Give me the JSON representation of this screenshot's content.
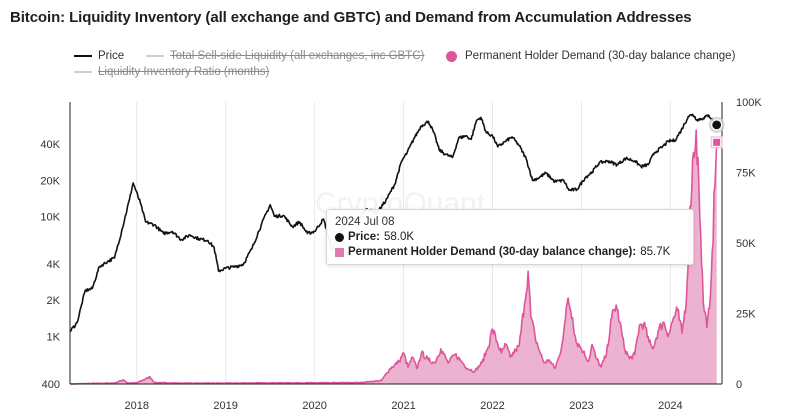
{
  "title": "Bitcoin: Liquidity Inventory (all exchange and GBTC) and Demand from Accumulation Addresses",
  "legend": {
    "price": "Price",
    "sellside": "Total Sell-side Liquidity (all exchanges, inc GBTC)",
    "demand": "Permanent Holder Demand (30-day balance change)",
    "ratio": "Liquidity Inventory Ratio (months)"
  },
  "colors": {
    "price": "#111111",
    "demand_line": "#e0559a",
    "demand_fill": "#e9a6c8",
    "disabled": "#c8c8c8",
    "grid": "#e9e9e9"
  },
  "watermark": "CryptoQuant",
  "tooltip": {
    "date": "2024 Jul 08",
    "price_label": "Price:",
    "price_value": "58.0K",
    "demand_label": "Permanent Holder Demand (30-day balance change):",
    "demand_value": "85.7K"
  },
  "chart_data": {
    "type": "line",
    "title": "Bitcoin: Liquidity Inventory (all exchange and GBTC) and Demand from Accumulation Addresses",
    "x_range": [
      2017.25,
      2024.58
    ],
    "x_ticks": [
      {
        "value": 2018,
        "label": "2018"
      },
      {
        "value": 2019,
        "label": "2019"
      },
      {
        "value": 2020,
        "label": "2020"
      },
      {
        "value": 2021,
        "label": "2021"
      },
      {
        "value": 2022,
        "label": "2022"
      },
      {
        "value": 2023,
        "label": "2023"
      },
      {
        "value": 2024,
        "label": "2024"
      }
    ],
    "y_left": {
      "scale": "log",
      "range": [
        400,
        90000
      ],
      "ticks": [
        {
          "value": 400,
          "label": "400"
        },
        {
          "value": 1000,
          "label": "1K"
        },
        {
          "value": 2000,
          "label": "2K"
        },
        {
          "value": 4000,
          "label": "4K"
        },
        {
          "value": 10000,
          "label": "10K"
        },
        {
          "value": 20000,
          "label": "20K"
        },
        {
          "value": 40000,
          "label": "40K"
        }
      ]
    },
    "y_right": {
      "scale": "linear",
      "range": [
        0,
        100000
      ],
      "ticks": [
        {
          "value": 0,
          "label": "0"
        },
        {
          "value": 25000,
          "label": "25K"
        },
        {
          "value": 50000,
          "label": "50K"
        },
        {
          "value": 75000,
          "label": "75K"
        },
        {
          "value": 100000,
          "label": "100K"
        }
      ]
    },
    "series": [
      {
        "name": "Price",
        "axis": "left",
        "kind": "line",
        "points": [
          [
            2017.25,
            1100
          ],
          [
            2017.33,
            1300
          ],
          [
            2017.42,
            2400
          ],
          [
            2017.5,
            2500
          ],
          [
            2017.58,
            3800
          ],
          [
            2017.67,
            4200
          ],
          [
            2017.75,
            4500
          ],
          [
            2017.83,
            7500
          ],
          [
            2017.92,
            14000
          ],
          [
            2017.96,
            19000
          ],
          [
            2018.04,
            13000
          ],
          [
            2018.1,
            9000
          ],
          [
            2018.2,
            8500
          ],
          [
            2018.3,
            7200
          ],
          [
            2018.4,
            7500
          ],
          [
            2018.5,
            6400
          ],
          [
            2018.6,
            7000
          ],
          [
            2018.7,
            6500
          ],
          [
            2018.8,
            6300
          ],
          [
            2018.87,
            5500
          ],
          [
            2018.92,
            3500
          ],
          [
            2019.0,
            3700
          ],
          [
            2019.1,
            3800
          ],
          [
            2019.2,
            4000
          ],
          [
            2019.3,
            5500
          ],
          [
            2019.4,
            8500
          ],
          [
            2019.5,
            12500
          ],
          [
            2019.55,
            10000
          ],
          [
            2019.65,
            10200
          ],
          [
            2019.75,
            8200
          ],
          [
            2019.83,
            9000
          ],
          [
            2019.92,
            7200
          ],
          [
            2020.0,
            7500
          ],
          [
            2020.1,
            9500
          ],
          [
            2020.2,
            5200
          ],
          [
            2020.28,
            7500
          ],
          [
            2020.38,
            9400
          ],
          [
            2020.48,
            9200
          ],
          [
            2020.58,
            11500
          ],
          [
            2020.7,
            10700
          ],
          [
            2020.8,
            13500
          ],
          [
            2020.9,
            18500
          ],
          [
            2020.98,
            29000
          ],
          [
            2021.04,
            34000
          ],
          [
            2021.12,
            45000
          ],
          [
            2021.2,
            57000
          ],
          [
            2021.28,
            62000
          ],
          [
            2021.34,
            50000
          ],
          [
            2021.4,
            36000
          ],
          [
            2021.47,
            33000
          ],
          [
            2021.55,
            31000
          ],
          [
            2021.62,
            45000
          ],
          [
            2021.7,
            47000
          ],
          [
            2021.76,
            44000
          ],
          [
            2021.82,
            63000
          ],
          [
            2021.87,
            67000
          ],
          [
            2021.93,
            50000
          ],
          [
            2022.0,
            47000
          ],
          [
            2022.06,
            38000
          ],
          [
            2022.14,
            42000
          ],
          [
            2022.22,
            46000
          ],
          [
            2022.3,
            39000
          ],
          [
            2022.38,
            30000
          ],
          [
            2022.45,
            20000
          ],
          [
            2022.52,
            21000
          ],
          [
            2022.6,
            23000
          ],
          [
            2022.7,
            19500
          ],
          [
            2022.8,
            20000
          ],
          [
            2022.86,
            16500
          ],
          [
            2022.95,
            16800
          ],
          [
            2023.04,
            21000
          ],
          [
            2023.12,
            23500
          ],
          [
            2023.2,
            28000
          ],
          [
            2023.3,
            29000
          ],
          [
            2023.4,
            27000
          ],
          [
            2023.5,
            30500
          ],
          [
            2023.6,
            29000
          ],
          [
            2023.67,
            26000
          ],
          [
            2023.75,
            27000
          ],
          [
            2023.82,
            34000
          ],
          [
            2023.9,
            37500
          ],
          [
            2023.98,
            42500
          ],
          [
            2024.05,
            43000
          ],
          [
            2024.12,
            52000
          ],
          [
            2024.2,
            68000
          ],
          [
            2024.25,
            71000
          ],
          [
            2024.3,
            64000
          ],
          [
            2024.37,
            66000
          ],
          [
            2024.43,
            70000
          ],
          [
            2024.5,
            60000
          ],
          [
            2024.52,
            58000
          ]
        ]
      },
      {
        "name": "Permanent Holder Demand (30-day balance change)",
        "axis": "right",
        "kind": "area",
        "points": [
          [
            2017.25,
            0
          ],
          [
            2017.5,
            200
          ],
          [
            2017.75,
            300
          ],
          [
            2017.85,
            1500
          ],
          [
            2017.9,
            300
          ],
          [
            2018.0,
            400
          ],
          [
            2018.15,
            2500
          ],
          [
            2018.2,
            500
          ],
          [
            2018.5,
            300
          ],
          [
            2019.0,
            300
          ],
          [
            2019.5,
            400
          ],
          [
            2020.0,
            400
          ],
          [
            2020.5,
            500
          ],
          [
            2020.75,
            1200
          ],
          [
            2020.85,
            5500
          ],
          [
            2020.95,
            8000
          ],
          [
            2021.0,
            11000
          ],
          [
            2021.05,
            6000
          ],
          [
            2021.1,
            9500
          ],
          [
            2021.15,
            5500
          ],
          [
            2021.2,
            11000
          ],
          [
            2021.28,
            8500
          ],
          [
            2021.35,
            7500
          ],
          [
            2021.42,
            12500
          ],
          [
            2021.5,
            7500
          ],
          [
            2021.58,
            10500
          ],
          [
            2021.65,
            8000
          ],
          [
            2021.72,
            5500
          ],
          [
            2021.8,
            4500
          ],
          [
            2021.88,
            7500
          ],
          [
            2021.95,
            13000
          ],
          [
            2022.0,
            19500
          ],
          [
            2022.05,
            15000
          ],
          [
            2022.1,
            11000
          ],
          [
            2022.15,
            14000
          ],
          [
            2022.2,
            9500
          ],
          [
            2022.26,
            12000
          ],
          [
            2022.3,
            13500
          ],
          [
            2022.36,
            28500
          ],
          [
            2022.4,
            40000
          ],
          [
            2022.43,
            24000
          ],
          [
            2022.48,
            16500
          ],
          [
            2022.53,
            11500
          ],
          [
            2022.58,
            7500
          ],
          [
            2022.64,
            8500
          ],
          [
            2022.7,
            5500
          ],
          [
            2022.76,
            10500
          ],
          [
            2022.82,
            23000
          ],
          [
            2022.85,
            30500
          ],
          [
            2022.9,
            23500
          ],
          [
            2022.94,
            15000
          ],
          [
            2022.98,
            13500
          ],
          [
            2023.02,
            11500
          ],
          [
            2023.08,
            8000
          ],
          [
            2023.12,
            14000
          ],
          [
            2023.16,
            9500
          ],
          [
            2023.22,
            6000
          ],
          [
            2023.28,
            10500
          ],
          [
            2023.34,
            23500
          ],
          [
            2023.39,
            28000
          ],
          [
            2023.43,
            22000
          ],
          [
            2023.48,
            13000
          ],
          [
            2023.54,
            9000
          ],
          [
            2023.6,
            10500
          ],
          [
            2023.65,
            20500
          ],
          [
            2023.7,
            21500
          ],
          [
            2023.76,
            15000
          ],
          [
            2023.8,
            12500
          ],
          [
            2023.86,
            18500
          ],
          [
            2023.92,
            22000
          ],
          [
            2023.98,
            17500
          ],
          [
            2024.03,
            23000
          ],
          [
            2024.08,
            26000
          ],
          [
            2024.13,
            18000
          ],
          [
            2024.18,
            30000
          ],
          [
            2024.22,
            63000
          ],
          [
            2024.26,
            82000
          ],
          [
            2024.29,
            90000
          ],
          [
            2024.32,
            70000
          ],
          [
            2024.35,
            43000
          ],
          [
            2024.38,
            26000
          ],
          [
            2024.41,
            20000
          ],
          [
            2024.44,
            27000
          ],
          [
            2024.47,
            47000
          ],
          [
            2024.5,
            70000
          ],
          [
            2024.52,
            85700
          ]
        ]
      }
    ],
    "annotation": {
      "date": "2024 Jul 08",
      "x": 2024.52,
      "price": 58000,
      "demand": 85700
    }
  }
}
